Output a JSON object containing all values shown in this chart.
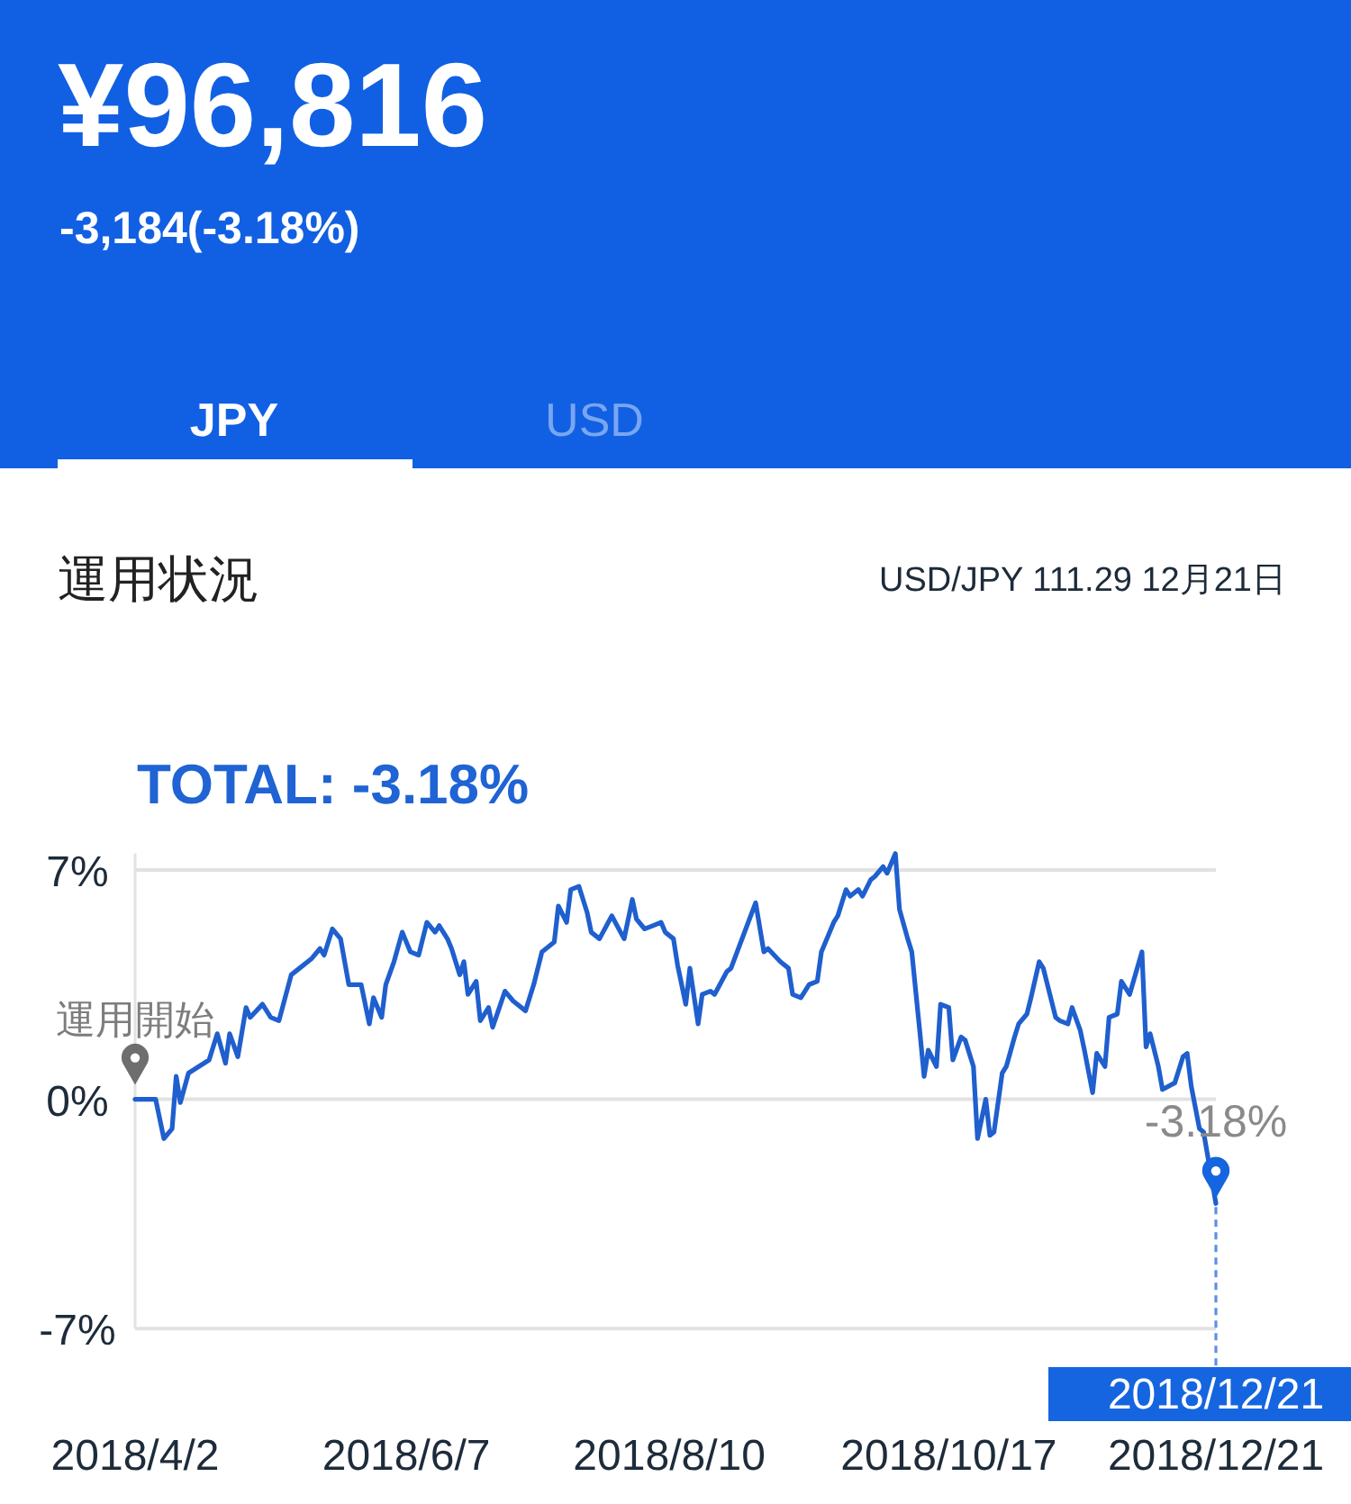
{
  "chart_data": {
    "type": "line",
    "title": "運用状況",
    "subtitle": "USD/JPY 111.29 12月21日",
    "annotations": [
      "¥96,816",
      "-3,184(-3.18%)",
      "JPY",
      "USD",
      "TOTAL: -3.18%",
      {
        "text": "運用開始",
        "x": "2018-04-02",
        "y": 0
      },
      {
        "text": "-3.18%",
        "x": "2018-12-21",
        "y": -3.18
      },
      {
        "text": "2018/12/21",
        "x": "2018-12-21",
        "y": -3.18
      }
    ],
    "x": [
      "2018-04-02",
      "2018-04-07",
      "2018-04-09",
      "2018-04-11",
      "2018-04-12",
      "2018-04-13",
      "2018-04-15",
      "2018-04-20",
      "2018-04-22",
      "2018-04-24",
      "2018-04-25",
      "2018-04-27",
      "2018-04-29",
      "2018-04-30",
      "2018-05-03",
      "2018-05-05",
      "2018-05-07",
      "2018-05-10",
      "2018-05-12",
      "2018-05-15",
      "2018-05-17",
      "2018-05-18",
      "2018-05-20",
      "2018-05-22",
      "2018-05-24",
      "2018-05-27",
      "2018-05-29",
      "2018-05-30",
      "2018-06-01",
      "2018-06-02",
      "2018-06-04",
      "2018-06-06",
      "2018-06-08",
      "2018-06-10",
      "2018-06-12",
      "2018-06-14",
      "2018-06-15",
      "2018-06-17",
      "2018-06-18",
      "2018-06-20",
      "2018-06-21",
      "2018-06-22",
      "2018-06-24",
      "2018-06-25",
      "2018-06-27",
      "2018-06-28",
      "2018-07-01",
      "2018-07-03",
      "2018-07-06",
      "2018-07-07",
      "2018-07-08",
      "2018-07-10",
      "2018-07-13",
      "2018-07-14",
      "2018-07-16",
      "2018-07-17",
      "2018-07-19",
      "2018-07-21",
      "2018-07-22",
      "2018-07-24",
      "2018-07-27",
      "2018-07-30",
      "2018-08-01",
      "2018-08-02",
      "2018-08-04",
      "2018-08-06",
      "2018-08-08",
      "2018-08-09",
      "2018-08-11",
      "2018-08-12",
      "2018-08-14",
      "2018-08-15",
      "2018-08-17",
      "2018-08-18",
      "2018-08-20",
      "2018-08-21",
      "2018-08-24",
      "2018-08-25",
      "2018-08-28",
      "2018-08-31",
      "2018-09-02",
      "2018-09-03",
      "2018-09-06",
      "2018-09-08",
      "2018-09-09",
      "2018-09-11",
      "2018-09-13",
      "2018-09-15",
      "2018-09-16",
      "2018-09-19",
      "2018-09-20",
      "2018-09-22",
      "2018-09-23",
      "2018-09-25",
      "2018-09-26",
      "2018-09-28",
      "2018-09-29",
      "2018-10-01",
      "2018-10-02",
      "2018-10-04",
      "2018-10-05",
      "2018-10-07",
      "2018-10-08",
      "2018-10-10",
      "2018-10-11",
      "2018-10-12",
      "2018-10-14",
      "2018-10-15",
      "2018-10-17",
      "2018-10-18",
      "2018-10-20",
      "2018-10-21",
      "2018-10-23",
      "2018-10-24",
      "2018-10-26",
      "2018-10-27",
      "2018-10-28",
      "2018-10-30",
      "2018-10-31",
      "2018-11-02",
      "2018-11-03",
      "2018-11-05",
      "2018-11-06",
      "2018-11-08",
      "2018-11-09",
      "2018-11-12",
      "2018-11-13",
      "2018-11-15",
      "2018-11-16",
      "2018-11-18",
      "2018-11-19",
      "2018-11-21",
      "2018-11-22",
      "2018-11-24",
      "2018-11-25",
      "2018-11-27",
      "2018-11-28",
      "2018-11-30",
      "2018-12-03",
      "2018-12-04",
      "2018-12-05",
      "2018-12-07",
      "2018-12-08",
      "2018-12-11",
      "2018-12-13",
      "2018-12-14",
      "2018-12-15",
      "2018-12-17",
      "2018-12-18",
      "2018-12-21"
    ],
    "series": [
      {
        "color": "#1f5fce",
        "values": [
          0,
          0,
          -1.2,
          -0.9,
          0.7,
          -0.1,
          0.8,
          1.2,
          2.0,
          1.1,
          2.0,
          1.3,
          2.8,
          2.5,
          2.9,
          2.5,
          2.4,
          3.8,
          4.0,
          4.3,
          4.6,
          4.4,
          5.2,
          4.9,
          3.5,
          3.5,
          2.3,
          3.1,
          2.5,
          3.5,
          4.2,
          5.1,
          4.5,
          4.4,
          5.4,
          5.1,
          5.3,
          4.9,
          4.6,
          3.8,
          4.2,
          3.2,
          3.6,
          2.4,
          2.8,
          2.2,
          3.3,
          3.0,
          2.7,
          3.1,
          3.5,
          4.5,
          4.8,
          5.9,
          5.4,
          6.4,
          6.5,
          5.7,
          5.1,
          4.9,
          5.6,
          4.9,
          6.1,
          5.5,
          5.2,
          5.3,
          5.4,
          5.1,
          4.9,
          4.1,
          2.9,
          4.0,
          2.3,
          3.2,
          3.3,
          3.2,
          3.9,
          4.0,
          5.0,
          6.0,
          4.5,
          4.6,
          4.2,
          4.0,
          3.2,
          3.1,
          3.5,
          3.6,
          4.5,
          5.4,
          5.6,
          6.4,
          6.2,
          6.4,
          6.2,
          6.7,
          6.8,
          7.1,
          6.9,
          7.5,
          5.8,
          4.9,
          4.5,
          2.0,
          0.7,
          1.5,
          1.0,
          2.9,
          2.8,
          1.2,
          1.9,
          1.8,
          1.0,
          -1.2,
          0.0,
          -1.1,
          -1.0,
          0.8,
          1.0,
          1.9,
          2.3,
          2.6,
          3.1,
          4.2,
          4.0,
          2.5,
          2.4,
          2.3,
          2.8,
          2.1,
          1.5,
          0.2,
          1.4,
          1.0,
          2.5,
          2.6,
          3.6,
          3.2,
          4.5,
          1.6,
          2.0,
          1.0,
          0.3,
          0.5,
          1.3,
          1.4,
          0.4,
          -0.9,
          -1.0,
          -3.18
        ]
      }
    ],
    "xlim": [
      "2018-04-02",
      "2018-12-21"
    ],
    "xticks": [
      {
        "value": "2018-04-02",
        "label": "2018/4/2"
      },
      {
        "value": "2018-06-07",
        "label": "2018/6/7"
      },
      {
        "value": "2018-08-10",
        "label": "2018/8/10"
      },
      {
        "value": "2018-10-17",
        "label": "2018/10/17"
      },
      {
        "value": "2018-12-21",
        "label": "2018/12/21"
      }
    ],
    "ylim": [
      -7,
      7.5
    ],
    "yticks": [
      {
        "value": 7,
        "label": "7%"
      },
      {
        "value": 0,
        "label": "0%"
      },
      {
        "value": -7,
        "label": "-7%"
      }
    ],
    "grid": "y"
  }
}
